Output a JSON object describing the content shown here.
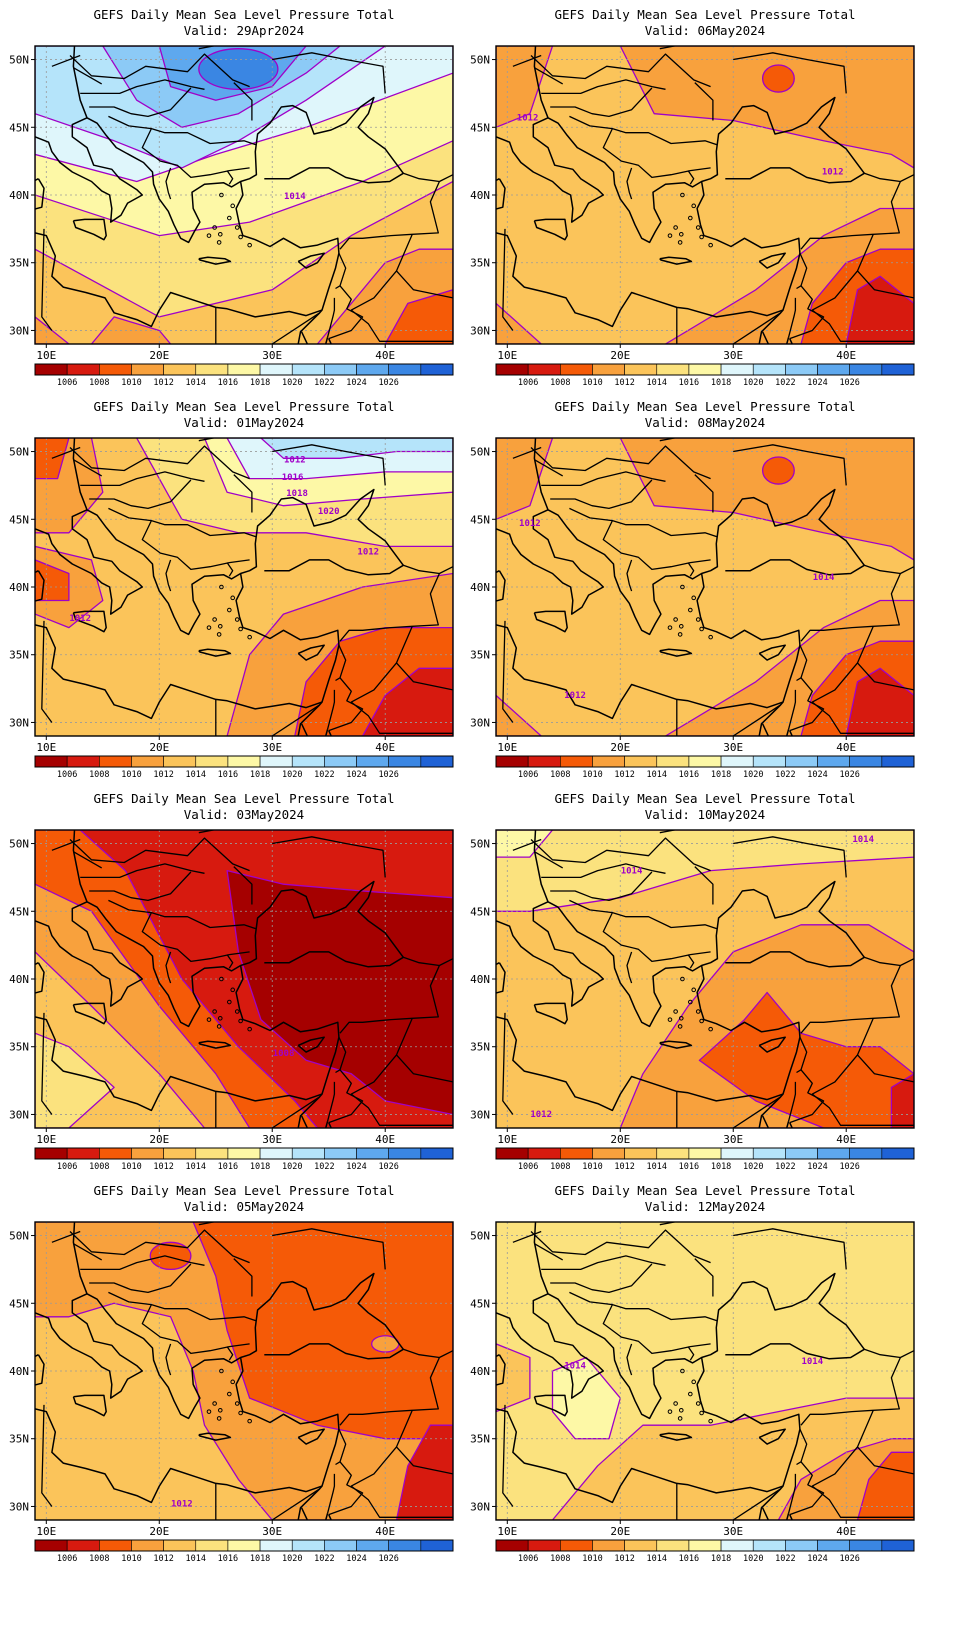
{
  "maps": [
    {
      "title": "GEFS Daily Mean Sea Level Pressure Total",
      "valid": "Valid: 29Apr2024",
      "pattern": "high-north"
    },
    {
      "title": "GEFS Daily Mean Sea Level Pressure Total",
      "valid": "Valid: 06May2024",
      "pattern": "uniform-low-east"
    },
    {
      "title": "GEFS Daily Mean Sea Level Pressure Total",
      "valid": "Valid: 01May2024",
      "pattern": "high-northeast"
    },
    {
      "title": "GEFS Daily Mean Sea Level Pressure Total",
      "valid": "Valid: 08May2024",
      "pattern": "uniform-low-east"
    },
    {
      "title": "GEFS Daily Mean Sea Level Pressure Total",
      "valid": "Valid: 03May2024",
      "pattern": "deep-low"
    },
    {
      "title": "GEFS Daily Mean Sea Level Pressure Total",
      "valid": "Valid: 10May2024",
      "pattern": "low-center"
    },
    {
      "title": "GEFS Daily Mean Sea Level Pressure Total",
      "valid": "Valid: 05May2024",
      "pattern": "moderate-low"
    },
    {
      "title": "GEFS Daily Mean Sea Level Pressure Total",
      "valid": "Valid: 12May2024",
      "pattern": "weak-low-east"
    }
  ],
  "axes": {
    "lat_labels": [
      "50N",
      "45N",
      "40N",
      "35N",
      "30N"
    ],
    "lon_labels": [
      "10E",
      "20E",
      "30E",
      "40E"
    ],
    "lat_range": [
      29,
      51
    ],
    "lon_range": [
      9,
      46
    ]
  },
  "colorbar": {
    "labels": [
      "1006",
      "1008",
      "1010",
      "1012",
      "1014",
      "1016",
      "1018",
      "1020",
      "1022",
      "1024",
      "1026"
    ],
    "colors": [
      "#a50000",
      "#d71a0f",
      "#f55a07",
      "#f8a13d",
      "#fbc45a",
      "#fbe27e",
      "#fdf8a6",
      "#dff6fb",
      "#b5e4fa",
      "#8ccaf6",
      "#5ea8ee",
      "#3a86e3",
      "#1f62d6"
    ]
  },
  "contour_labels": {
    "map0": [
      "1014"
    ],
    "map1": [
      "1012",
      "1012"
    ],
    "map2": [
      "1012",
      "1016",
      "1018",
      "1020",
      "1012",
      "1012"
    ],
    "map3": [
      "1012",
      "1014",
      "1012"
    ],
    "map4": [
      "1008"
    ],
    "map5": [
      "1014",
      "1014",
      "1012"
    ],
    "map6": [
      "1012"
    ],
    "map7": [
      "1014",
      "1014"
    ]
  }
}
